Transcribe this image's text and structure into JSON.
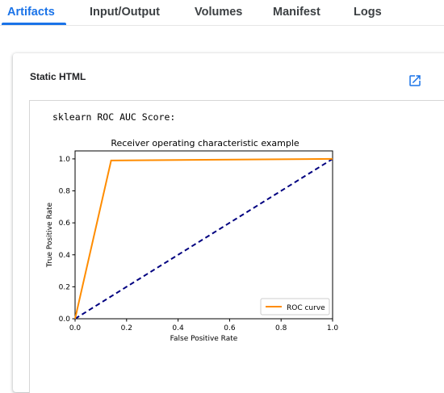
{
  "tabs": [
    {
      "label": "Artifacts",
      "active": true
    },
    {
      "label": "Input/Output",
      "active": false
    },
    {
      "label": "Volumes",
      "active": false
    },
    {
      "label": "Manifest",
      "active": false
    },
    {
      "label": "Logs",
      "active": false
    }
  ],
  "card": {
    "title": "Static HTML",
    "open_icon": "open-in-new-icon",
    "output_text": "sklearn ROC AUC Score:"
  },
  "colors": {
    "accent": "#1a73e8",
    "roc_curve": "#ff8c00",
    "diagonal": "#000080"
  },
  "chart_data": {
    "type": "line",
    "title": "Receiver operating characteristic example",
    "xlabel": "False Positive Rate",
    "ylabel": "True Positive Rate",
    "xlim": [
      0.0,
      1.0
    ],
    "ylim": [
      0.0,
      1.05
    ],
    "xticks": [
      "0.0",
      "0.2",
      "0.4",
      "0.6",
      "0.8",
      "1.0"
    ],
    "yticks": [
      "0.0",
      "0.2",
      "0.4",
      "0.6",
      "0.8",
      "1.0"
    ],
    "grid": false,
    "legend_position": "lower-right",
    "series": [
      {
        "name": "ROC curve",
        "style": "solid",
        "x": [
          0.0,
          0.14,
          1.0
        ],
        "y": [
          0.0,
          0.99,
          1.0
        ]
      },
      {
        "style": "dashed",
        "x": [
          0.0,
          1.0
        ],
        "y": [
          0.0,
          1.0
        ]
      }
    ]
  }
}
